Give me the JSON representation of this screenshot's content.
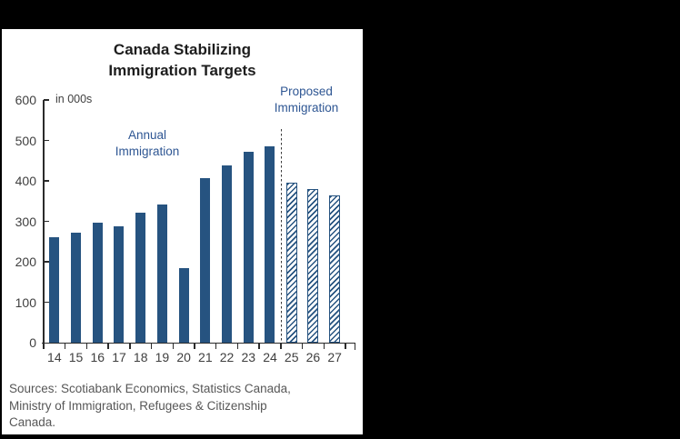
{
  "chart_panel": {
    "title_lines": [
      "Canada Stabilizing",
      "Immigration Targets"
    ],
    "sources_lines": [
      "Sources: Scotiabank Economics, Statistics Canada,",
      "Ministry of Immigration, Refugees & Citizenship",
      "Canada."
    ]
  },
  "chart_data": {
    "type": "bar",
    "title": "Canada Stabilizing Immigration Targets",
    "units_label": "in 000s",
    "xlabel": "",
    "ylabel": "in 000s",
    "categories": [
      "14",
      "15",
      "16",
      "17",
      "18",
      "19",
      "20",
      "21",
      "22",
      "23",
      "24",
      "25",
      "26",
      "27"
    ],
    "series": [
      {
        "name": "Annual Immigration",
        "style": "solid",
        "label_lines": [
          "Annual",
          "Immigration"
        ],
        "values": [
          260,
          272,
          296,
          287,
          321,
          341,
          185,
          406,
          438,
          472,
          485,
          null,
          null,
          null
        ]
      },
      {
        "name": "Proposed Immigration",
        "style": "hatched",
        "label_lines": [
          "Proposed",
          "Immigration"
        ],
        "values": [
          null,
          null,
          null,
          null,
          null,
          null,
          null,
          null,
          null,
          null,
          null,
          395,
          380,
          365
        ]
      }
    ],
    "ylim": [
      0,
      600
    ],
    "yticks": [
      0,
      100,
      200,
      300,
      400,
      500,
      600
    ],
    "divider_between": [
      "24",
      "25"
    ],
    "grid": false,
    "legend_position": "in-plot annotations",
    "colors": {
      "bar_fill": "#265380",
      "annotation_text": "#2E5693",
      "axis": "#2b2b2b",
      "tick_label": "#3f3f3f",
      "title_text": "#1d1d1d",
      "sources_text": "#575757",
      "divider": "#3a3a3a",
      "panel_background": "#ffffff"
    }
  }
}
